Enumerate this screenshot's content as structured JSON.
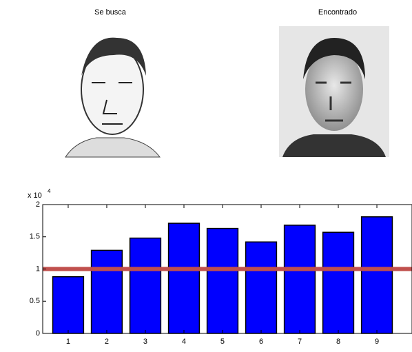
{
  "images": [
    {
      "title": "Se busca"
    },
    {
      "title": "Encontrado"
    }
  ],
  "chart_data": {
    "type": "bar",
    "x": [
      1,
      2,
      3,
      4,
      5,
      6,
      7,
      8,
      9
    ],
    "values": [
      0.88,
      1.29,
      1.48,
      1.71,
      1.63,
      1.42,
      1.68,
      1.57,
      1.81
    ],
    "color": "#0000ff",
    "xlim": [
      0.34,
      9.91
    ],
    "xticks": [
      1,
      2,
      3,
      4,
      5,
      6,
      7,
      8,
      9
    ],
    "ylim": [
      0,
      2
    ],
    "yticks": [
      0,
      0.5,
      1,
      1.5,
      2
    ],
    "y_multiplier": {
      "base": "x 10",
      "exponent": "4"
    },
    "threshold": {
      "value": 1,
      "color": "#c0504d"
    }
  }
}
